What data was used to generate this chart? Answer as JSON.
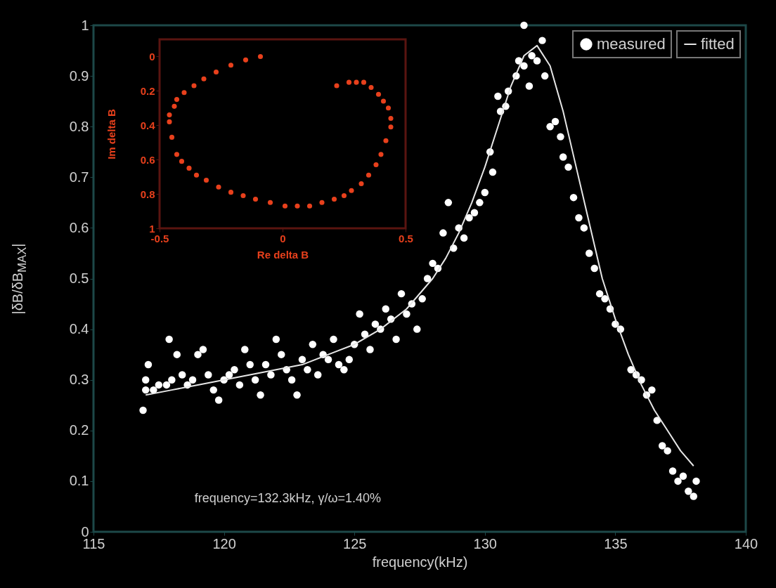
{
  "chart_data": [
    {
      "type": "scatter",
      "xlabel": "frequency(kHz)",
      "ylabel": "|δB/δB$_{MAX}$|",
      "xlim": [
        115,
        140
      ],
      "xticks": [
        115,
        120,
        125,
        130,
        135,
        140
      ],
      "ylim": [
        0,
        1
      ],
      "yticks": [
        0,
        0.1,
        0.2,
        0.3,
        0.4,
        0.5,
        0.6,
        0.7,
        0.8,
        0.9,
        1
      ],
      "legend": "top right",
      "grid": false,
      "annotations": [
        "frequency=132.3kHz, γ/ω=1.40%"
      ],
      "series": [
        {
          "name": "measured",
          "color": "#ffffff",
          "x": [
            116.9,
            117.0,
            117.0,
            117.1,
            117.3,
            117.5,
            117.8,
            117.9,
            118.0,
            118.2,
            118.4,
            118.6,
            118.8,
            119.0,
            119.2,
            119.4,
            119.6,
            119.8,
            120.0,
            120.2,
            120.4,
            120.6,
            120.8,
            121.0,
            121.2,
            121.4,
            121.6,
            121.8,
            122.0,
            122.2,
            122.4,
            122.6,
            122.8,
            123.0,
            123.2,
            123.4,
            123.6,
            123.8,
            124.0,
            124.2,
            124.4,
            124.6,
            124.8,
            125.0,
            125.2,
            125.4,
            125.6,
            125.8,
            126.0,
            126.2,
            126.4,
            126.6,
            126.8,
            127.0,
            127.2,
            127.4,
            127.6,
            127.8,
            128.0,
            128.2,
            128.4,
            128.6,
            128.8,
            129.0,
            129.2,
            129.4,
            129.6,
            129.8,
            130.0,
            130.2,
            130.3,
            130.5,
            130.6,
            130.8,
            130.9,
            131.2,
            131.3,
            131.5,
            131.5,
            131.7,
            131.8,
            132.0,
            132.2,
            132.3,
            132.5,
            132.7,
            132.9,
            133.0,
            133.2,
            133.4,
            133.6,
            133.8,
            134.0,
            134.2,
            134.4,
            134.6,
            134.8,
            135.0,
            135.2,
            135.6,
            135.8,
            136.0,
            136.2,
            136.4,
            136.6,
            136.8,
            137.0,
            137.2,
            137.4,
            137.6,
            137.8,
            138.0,
            138.1
          ],
          "values": [
            0.24,
            0.28,
            0.3,
            0.33,
            0.28,
            0.29,
            0.29,
            0.38,
            0.3,
            0.35,
            0.31,
            0.29,
            0.3,
            0.35,
            0.36,
            0.31,
            0.28,
            0.26,
            0.3,
            0.31,
            0.32,
            0.29,
            0.36,
            0.33,
            0.3,
            0.27,
            0.33,
            0.31,
            0.38,
            0.35,
            0.32,
            0.3,
            0.27,
            0.34,
            0.32,
            0.37,
            0.31,
            0.35,
            0.34,
            0.38,
            0.33,
            0.32,
            0.34,
            0.37,
            0.43,
            0.39,
            0.36,
            0.41,
            0.4,
            0.44,
            0.42,
            0.38,
            0.47,
            0.43,
            0.45,
            0.4,
            0.46,
            0.5,
            0.53,
            0.52,
            0.59,
            0.65,
            0.56,
            0.6,
            0.58,
            0.62,
            0.63,
            0.65,
            0.67,
            0.75,
            0.71,
            0.86,
            0.83,
            0.84,
            0.87,
            0.9,
            0.93,
            1.0,
            0.92,
            0.88,
            0.94,
            0.93,
            0.97,
            0.9,
            0.8,
            0.81,
            0.78,
            0.74,
            0.72,
            0.66,
            0.62,
            0.6,
            0.55,
            0.52,
            0.47,
            0.46,
            0.44,
            0.41,
            0.4,
            0.32,
            0.31,
            0.3,
            0.27,
            0.28,
            0.22,
            0.17,
            0.16,
            0.12,
            0.1,
            0.11,
            0.08,
            0.07,
            0.1
          ]
        },
        {
          "name": "fitted",
          "type": "line",
          "color": "#e6e6e6",
          "x": [
            117,
            118,
            119,
            120,
            121,
            122,
            123,
            124,
            125,
            126,
            127,
            128,
            128.5,
            129,
            129.5,
            130,
            130.5,
            131,
            131.5,
            132,
            132.5,
            133,
            133.5,
            134,
            134.5,
            135,
            135.5,
            136,
            136.5,
            137,
            137.5,
            138
          ],
          "values": [
            0.27,
            0.28,
            0.29,
            0.3,
            0.31,
            0.32,
            0.33,
            0.35,
            0.37,
            0.4,
            0.44,
            0.5,
            0.54,
            0.59,
            0.65,
            0.72,
            0.8,
            0.88,
            0.94,
            0.96,
            0.92,
            0.83,
            0.72,
            0.61,
            0.5,
            0.42,
            0.35,
            0.29,
            0.24,
            0.2,
            0.16,
            0.13
          ]
        }
      ]
    },
    {
      "type": "scatter",
      "xlabel": "Re delta B",
      "ylabel": "Im delta B",
      "xlim": [
        -0.5,
        0.5
      ],
      "xticks": [
        -0.5,
        0,
        0.5
      ],
      "ylim": [
        1,
        -0.1
      ],
      "yticks": [
        0,
        0.2,
        0.4,
        0.6,
        0.8,
        1
      ],
      "series": [
        {
          "color": "#e8401c",
          "x": [
            -0.09,
            -0.15,
            -0.21,
            -0.27,
            -0.32,
            -0.36,
            -0.4,
            -0.43,
            -0.44,
            -0.46,
            -0.46,
            -0.45,
            -0.43,
            -0.41,
            -0.38,
            -0.35,
            -0.31,
            -0.26,
            -0.21,
            -0.16,
            -0.11,
            -0.05,
            0.01,
            0.06,
            0.11,
            0.16,
            0.21,
            0.25,
            0.28,
            0.32,
            0.35,
            0.38,
            0.4,
            0.42,
            0.44,
            0.44,
            0.43,
            0.41,
            0.39,
            0.36,
            0.33,
            0.3,
            0.27,
            0.22
          ],
          "values": [
            0.0,
            0.02,
            0.05,
            0.09,
            0.13,
            0.17,
            0.21,
            0.25,
            0.29,
            0.34,
            0.38,
            0.47,
            0.57,
            0.61,
            0.65,
            0.69,
            0.72,
            0.76,
            0.79,
            0.81,
            0.83,
            0.85,
            0.87,
            0.87,
            0.87,
            0.85,
            0.83,
            0.81,
            0.78,
            0.74,
            0.69,
            0.63,
            0.57,
            0.49,
            0.41,
            0.36,
            0.3,
            0.26,
            0.22,
            0.18,
            0.15,
            0.15,
            0.15,
            0.17
          ]
        }
      ]
    }
  ]
}
